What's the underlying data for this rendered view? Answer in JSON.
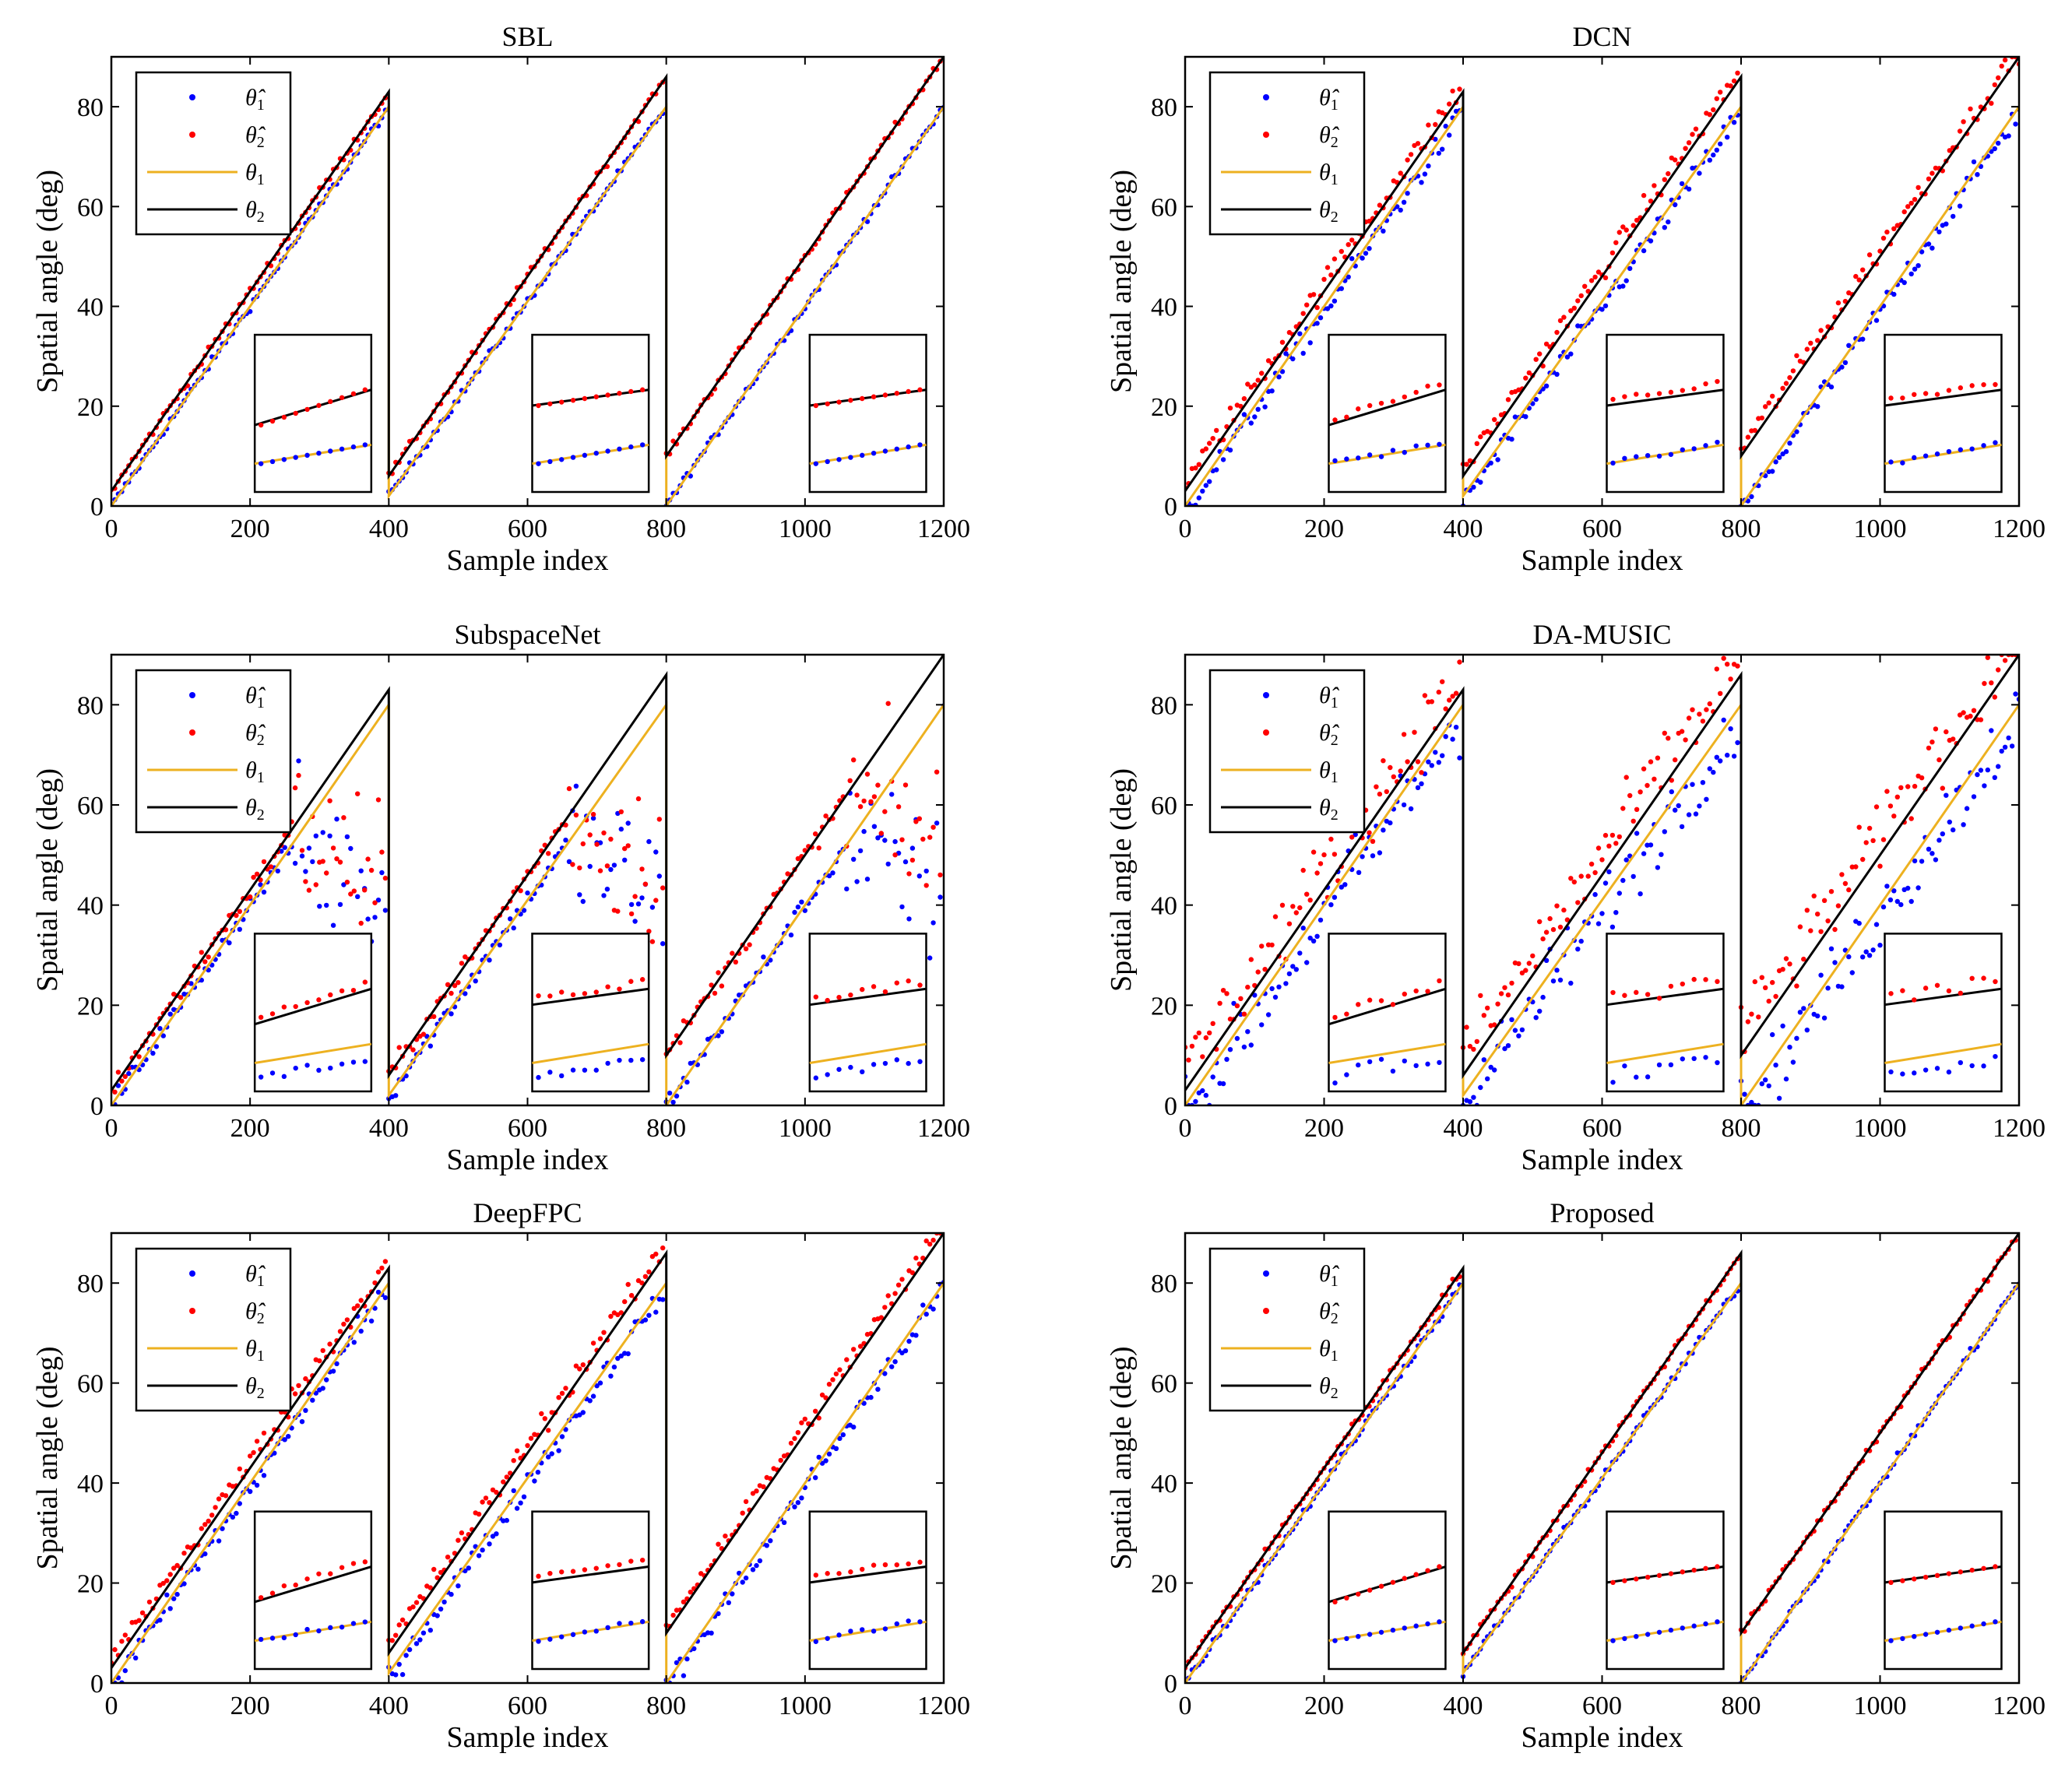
{
  "figure": {
    "panels": [
      {
        "title": "SBL",
        "quality": 0
      },
      {
        "title": "DCN",
        "quality": 1
      },
      {
        "title": "SubspaceNet",
        "quality": 3
      },
      {
        "title": "DA-MUSIC",
        "quality": 2
      },
      {
        "title": "DeepFPC",
        "quality": 1
      },
      {
        "title": "Proposed",
        "quality": 0
      }
    ],
    "xlabel": "Sample index",
    "ylabel": "Spatial angle (deg)",
    "legend": [
      {
        "symbol": "θ̂",
        "sub": "1",
        "kind": "dot",
        "color": "#0000ff"
      },
      {
        "symbol": "θ̂",
        "sub": "2",
        "kind": "dot",
        "color": "#ff0000"
      },
      {
        "symbol": "θ",
        "sub": "1",
        "kind": "line",
        "color": "#edb120"
      },
      {
        "symbol": "θ",
        "sub": "2",
        "kind": "line",
        "color": "#000000"
      }
    ]
  },
  "chart_data": [
    {
      "type": "scatter",
      "title": "SBL",
      "xlabel": "Sample index",
      "ylabel": "Spatial angle (deg)",
      "xlim": [
        0,
        1200
      ],
      "ylim": [
        0,
        90
      ],
      "xticks": [
        0,
        200,
        400,
        600,
        800,
        1000,
        1200
      ],
      "yticks": [
        0,
        20,
        40,
        60,
        80
      ],
      "series": [
        {
          "name": "θ1 (true)",
          "segments": [
            [
              [
                0,
                0
              ],
              [
                400,
                80
              ]
            ],
            [
              [
                400,
                2
              ],
              [
                800,
                80
              ]
            ],
            [
              [
                800,
                0
              ],
              [
                1200,
                80
              ]
            ]
          ]
        },
        {
          "name": "θ2 (true)",
          "segments": [
            [
              [
                0,
                3
              ],
              [
                400,
                83
              ]
            ],
            [
              [
                400,
                6
              ],
              [
                800,
                86
              ]
            ],
            [
              [
                800,
                10
              ],
              [
                1200,
                90
              ]
            ]
          ]
        },
        {
          "name": "θ̂1 (estimate)"
        },
        {
          "name": "θ̂2 (estimate)"
        }
      ]
    },
    {
      "type": "scatter",
      "title": "DCN",
      "xlabel": "Sample index",
      "ylabel": "Spatial angle (deg)",
      "xlim": [
        0,
        1200
      ],
      "ylim": [
        0,
        90
      ]
    },
    {
      "type": "scatter",
      "title": "SubspaceNet",
      "xlabel": "Sample index",
      "ylabel": "Spatial angle (deg)",
      "xlim": [
        0,
        1200
      ],
      "ylim": [
        0,
        90
      ]
    },
    {
      "type": "scatter",
      "title": "DA-MUSIC",
      "xlabel": "Sample index",
      "ylabel": "Spatial angle (deg)",
      "xlim": [
        0,
        1200
      ],
      "ylim": [
        0,
        90
      ]
    },
    {
      "type": "scatter",
      "title": "DeepFPC",
      "xlabel": "Sample index",
      "ylabel": "Spatial angle (deg)",
      "xlim": [
        0,
        1200
      ],
      "ylim": [
        0,
        90
      ]
    },
    {
      "type": "scatter",
      "title": "Proposed",
      "xlabel": "Sample index",
      "ylabel": "Spatial angle (deg)",
      "xlim": [
        0,
        1200
      ],
      "ylim": [
        0,
        90
      ]
    }
  ]
}
